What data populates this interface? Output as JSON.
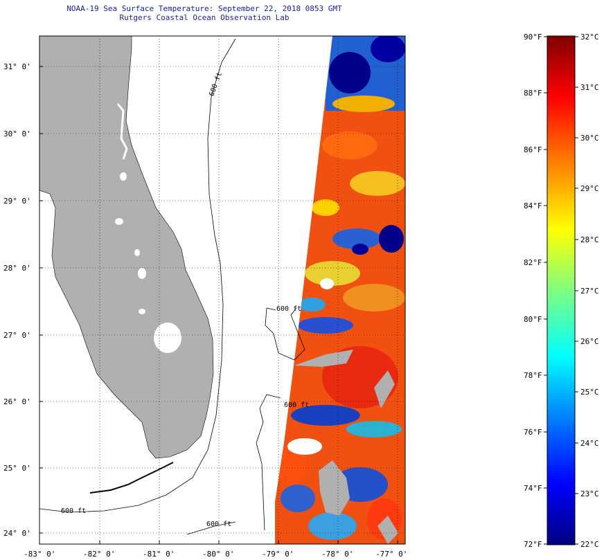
{
  "title": {
    "line1": "NOAA-19 Sea Surface Temperature:  September 22, 2018 0853 GMT",
    "line2": "Rutgers Coastal Ocean Observation Lab"
  },
  "map": {
    "lon_range": [
      -83,
      -76.9
    ],
    "lat_range": [
      23.85,
      31.45
    ],
    "lon_ticks": [
      "-83° 0'",
      "-82° 0'",
      "-81° 0'",
      "-80° 0'",
      "-79° 0'",
      "-78° 0'",
      "-77° 0'"
    ],
    "lat_ticks": [
      "31° 0'",
      "30° 0'",
      "29° 0'",
      "28° 0'",
      "27° 0'",
      "26° 0'",
      "25° 0'",
      "24° 0'"
    ],
    "isobath_labels": [
      "600 ft",
      "600 ft",
      "600 ft",
      "600 ft",
      "600 ft"
    ],
    "colors": {
      "land": "#b0b0b0",
      "background": "#ffffff",
      "title": "#1a1aa6"
    }
  },
  "colorbar": {
    "fahrenheit_labels": [
      "90°F",
      "88°F",
      "86°F",
      "84°F",
      "82°F",
      "80°F",
      "78°F",
      "76°F",
      "74°F",
      "72°F"
    ],
    "celsius_labels": [
      "32°C",
      "31°C",
      "30°C",
      "29°C",
      "28°C",
      "27°C",
      "26°C",
      "25°C",
      "24°C",
      "23°C",
      "22°C"
    ],
    "range_f": [
      72,
      90
    ],
    "range_c": [
      22,
      32
    ],
    "colors": [
      "#00007f",
      "#0000ff",
      "#0080ff",
      "#00ffff",
      "#80ff80",
      "#ffff00",
      "#ff8000",
      "#ff0000",
      "#7f0000"
    ]
  }
}
